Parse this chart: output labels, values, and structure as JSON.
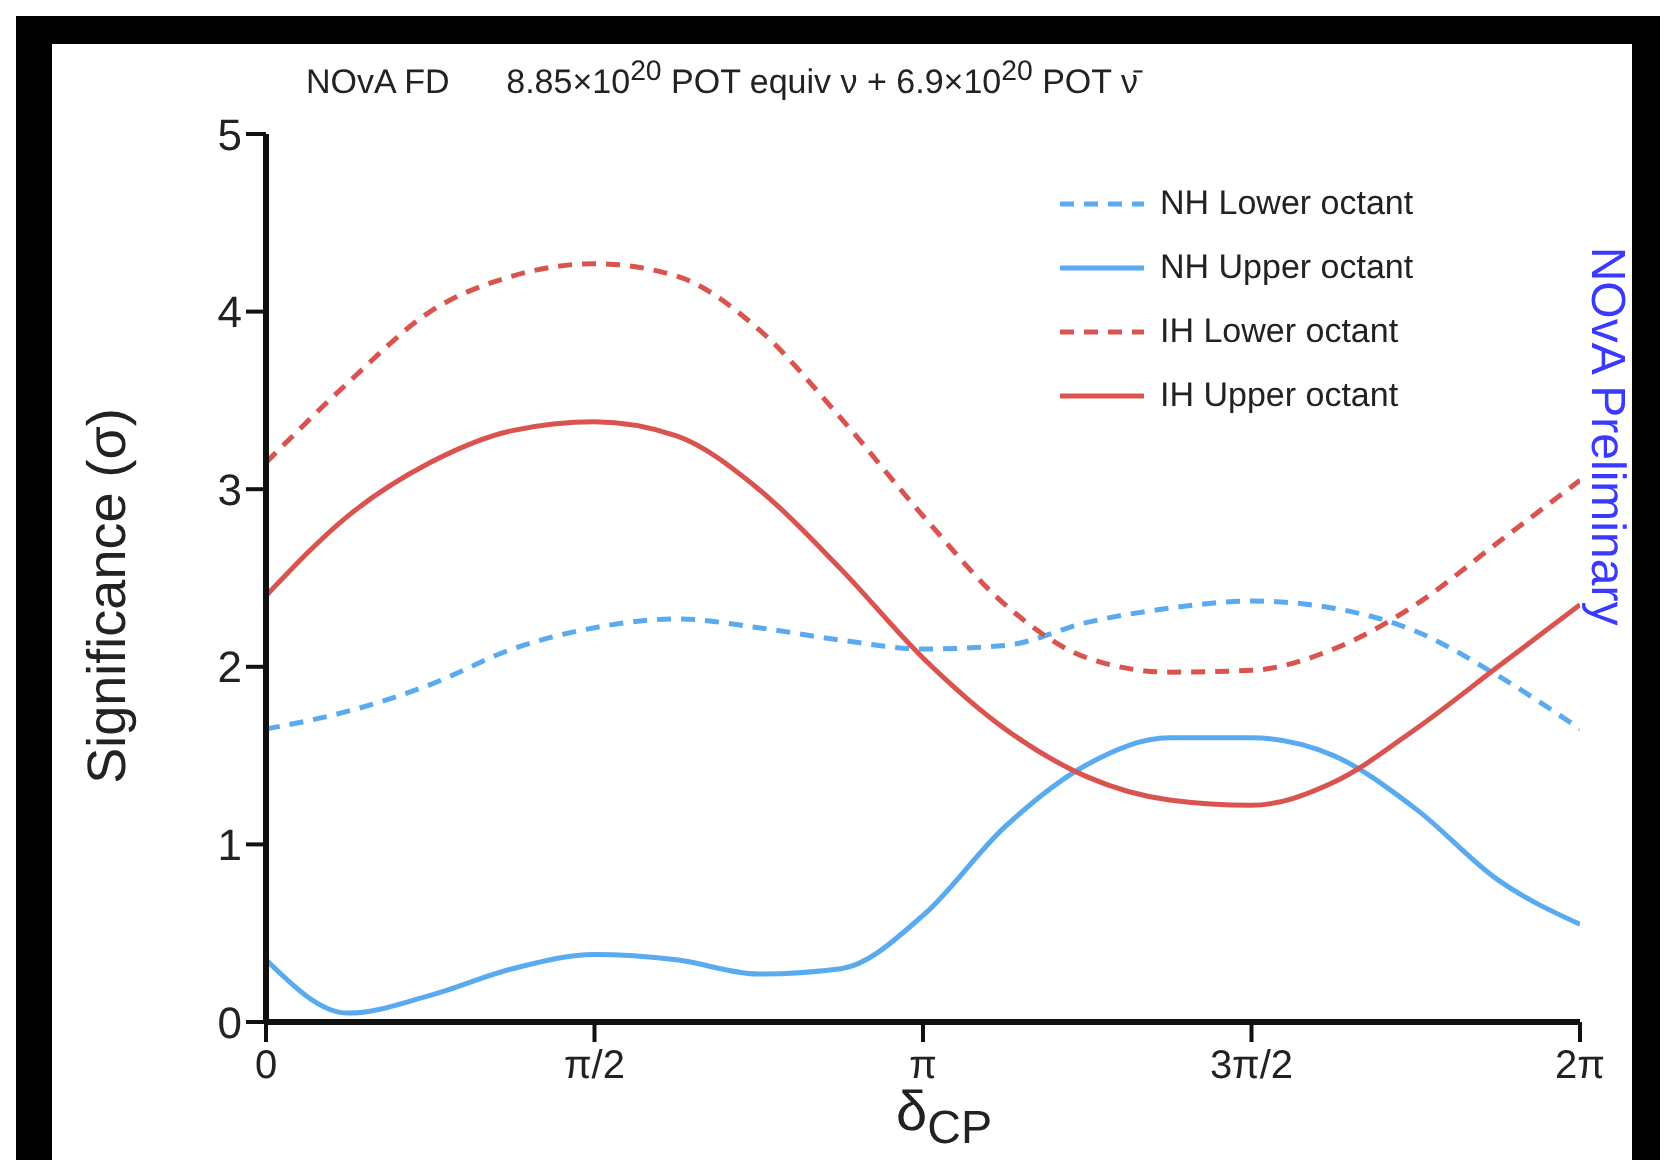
{
  "chart_data": {
    "type": "line",
    "title": "NOvA FD      8.85×10$^{20}$ POT equiv ν + 6.9×10$^{20}$ POT ν̄",
    "xlabel": "δ$_{CP}$",
    "ylabel": "Significance (σ)",
    "annotations": [
      "NOvA Preliminary"
    ],
    "xlim": [
      0,
      6.2832
    ],
    "xticks": [
      {
        "value": 0,
        "label": "0"
      },
      {
        "value": 1.5708,
        "label": "π/2"
      },
      {
        "value": 3.1416,
        "label": "π"
      },
      {
        "value": 4.7124,
        "label": "3π/2"
      },
      {
        "value": 6.2832,
        "label": "2π"
      }
    ],
    "ylim": [
      0,
      5
    ],
    "yticks": [
      0,
      1,
      2,
      3,
      4,
      5
    ],
    "x": [
      0,
      0.3927,
      0.7854,
      1.1781,
      1.5708,
      1.9635,
      2.3562,
      2.7489,
      3.1416,
      3.5343,
      3.927,
      4.3197,
      4.7124,
      5.1051,
      5.4978,
      5.8905,
      6.2832
    ],
    "series": [
      {
        "name": "NH Lower octant",
        "color": "#5aaaf0",
        "line_style": "dashed",
        "values": [
          1.65,
          1.75,
          1.9,
          2.1,
          2.22,
          2.27,
          2.22,
          2.15,
          2.1,
          2.12,
          2.25,
          2.33,
          2.37,
          2.33,
          2.2,
          1.95,
          1.65
        ]
      },
      {
        "name": "NH Upper octant",
        "color": "#5aaaf0",
        "line_style": "solid",
        "values": [
          0.35,
          0.05,
          0.15,
          0.3,
          0.38,
          0.35,
          0.27,
          0.3,
          0.6,
          1.1,
          1.45,
          1.6,
          1.6,
          1.5,
          1.2,
          0.8,
          0.55
        ]
      },
      {
        "name": "IH Lower octant",
        "color": "#d9534f",
        "line_style": "dashed",
        "values": [
          3.15,
          3.6,
          4.0,
          4.2,
          4.27,
          4.2,
          3.9,
          3.4,
          2.85,
          2.35,
          2.05,
          1.97,
          1.98,
          2.1,
          2.35,
          2.7,
          3.05
        ]
      },
      {
        "name": "IH Upper octant",
        "color": "#d9534f",
        "line_style": "solid",
        "values": [
          2.4,
          2.85,
          3.15,
          3.33,
          3.38,
          3.3,
          3.0,
          2.55,
          2.05,
          1.65,
          1.38,
          1.25,
          1.22,
          1.35,
          1.65,
          2.0,
          2.35
        ]
      }
    ],
    "legend": "top right",
    "grid": false,
    "marker": "none"
  }
}
